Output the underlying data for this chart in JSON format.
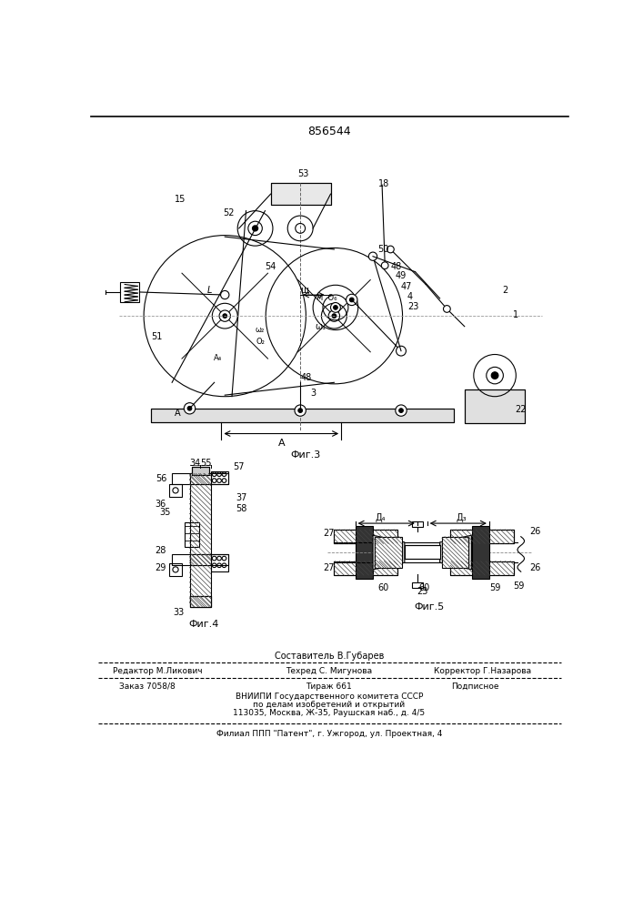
{
  "patent_number": "856544",
  "fig3_caption": "Фиг.3",
  "fig4_caption": "Фиг.4",
  "fig5_caption": "Фиг.5",
  "footer_line1": "Составитель В.Губарев",
  "footer_line2_left": "Редактор М.Ликович",
  "footer_line2_mid": "Техред С. Мигунова",
  "footer_line2_right": "Корректор Г.Назарова",
  "footer_line3_left": "Заказ 7058/8",
  "footer_line3_mid": "Тираж 661",
  "footer_line3_right": "Подписное",
  "footer_line4": "ВНИИПИ Государственного комитета СССР",
  "footer_line5": "по делам изобретений и открытий",
  "footer_line6": "113035, Москва, Ж-35, Раушская наб., д. 4/5",
  "footer_line7": "Филиал ППП \"Патент\", г. Ужгород, ул. Проектная, 4",
  "bg_color": "#ffffff",
  "line_color": "#000000",
  "line_width": 0.8
}
